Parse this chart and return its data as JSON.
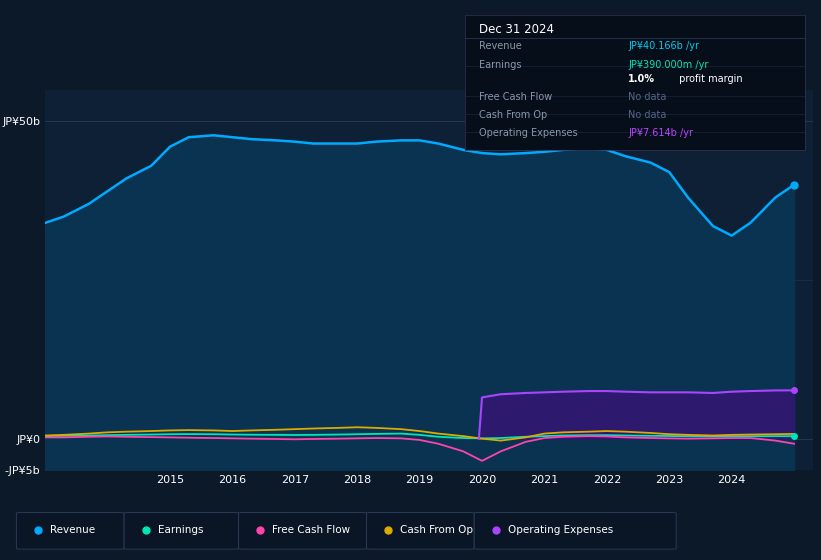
{
  "bg_color": "#0b1929",
  "plot_bg_color": "#0d2035",
  "grid_color": "#1a3a5c",
  "title_box": {
    "date": "Dec 31 2024",
    "rows": [
      {
        "label": "Revenue",
        "value": "JP¥40.166b /yr",
        "value_color": "#00ccee"
      },
      {
        "label": "Earnings",
        "value": "JP¥390.000m /yr",
        "value_color": "#00e5b4"
      },
      {
        "label": "",
        "value": "1.0% profit margin",
        "value_color": "#ffffff"
      },
      {
        "label": "Free Cash Flow",
        "value": "No data",
        "value_color": "#556688"
      },
      {
        "label": "Cash From Op",
        "value": "No data",
        "value_color": "#556688"
      },
      {
        "label": "Operating Expenses",
        "value": "JP¥7.614b /yr",
        "value_color": "#bb44ff"
      }
    ]
  },
  "years_x": [
    2013.0,
    2013.3,
    2013.7,
    2014.0,
    2014.3,
    2014.7,
    2015.0,
    2015.3,
    2015.7,
    2016.0,
    2016.3,
    2016.7,
    2017.0,
    2017.3,
    2017.7,
    2018.0,
    2018.3,
    2018.7,
    2019.0,
    2019.3,
    2019.7,
    2020.0,
    2020.3,
    2020.7,
    2021.0,
    2021.3,
    2021.7,
    2022.0,
    2022.3,
    2022.7,
    2023.0,
    2023.3,
    2023.7,
    2024.0,
    2024.3,
    2024.7,
    2025.0
  ],
  "revenue": [
    34,
    35,
    37,
    39,
    41,
    43,
    46,
    47.5,
    47.8,
    47.5,
    47.2,
    47.0,
    46.8,
    46.5,
    46.5,
    46.5,
    46.8,
    47.0,
    47.0,
    46.5,
    45.5,
    45.0,
    44.8,
    45.0,
    45.2,
    45.5,
    45.8,
    45.5,
    44.5,
    43.5,
    42.0,
    38.0,
    33.5,
    32.0,
    34.0,
    38.0,
    40.0
  ],
  "earnings": [
    0.4,
    0.45,
    0.5,
    0.55,
    0.6,
    0.65,
    0.7,
    0.72,
    0.7,
    0.65,
    0.62,
    0.6,
    0.58,
    0.6,
    0.65,
    0.7,
    0.75,
    0.8,
    0.6,
    0.3,
    0.1,
    0.05,
    0.1,
    0.3,
    0.4,
    0.5,
    0.55,
    0.55,
    0.5,
    0.45,
    0.42,
    0.38,
    0.35,
    0.37,
    0.38,
    0.39,
    0.39
  ],
  "free_cash_flow": [
    0.2,
    0.2,
    0.3,
    0.35,
    0.3,
    0.25,
    0.2,
    0.15,
    0.1,
    0.05,
    0.0,
    -0.05,
    -0.1,
    -0.05,
    0.0,
    0.05,
    0.1,
    0.05,
    -0.2,
    -0.8,
    -2.0,
    -3.5,
    -2.0,
    -0.5,
    0.1,
    0.3,
    0.4,
    0.35,
    0.2,
    0.1,
    0.05,
    0.0,
    0.05,
    0.1,
    0.1,
    -0.3,
    -0.8
  ],
  "cash_from_op": [
    0.5,
    0.6,
    0.8,
    1.0,
    1.1,
    1.2,
    1.3,
    1.35,
    1.3,
    1.2,
    1.3,
    1.4,
    1.5,
    1.6,
    1.7,
    1.8,
    1.7,
    1.5,
    1.2,
    0.8,
    0.4,
    0.0,
    -0.3,
    0.2,
    0.8,
    1.0,
    1.1,
    1.2,
    1.1,
    0.9,
    0.7,
    0.6,
    0.5,
    0.6,
    0.65,
    0.7,
    0.75
  ],
  "op_expenses_x": [
    2019.95,
    2020.0,
    2020.3,
    2020.7,
    2021.0,
    2021.3,
    2021.7,
    2022.0,
    2022.3,
    2022.7,
    2023.0,
    2023.3,
    2023.7,
    2024.0,
    2024.3,
    2024.7,
    2025.0
  ],
  "op_expenses": [
    0.0,
    6.5,
    7.0,
    7.2,
    7.3,
    7.4,
    7.5,
    7.5,
    7.4,
    7.3,
    7.3,
    7.3,
    7.2,
    7.4,
    7.5,
    7.6,
    7.614
  ],
  "revenue_color": "#00aaff",
  "earnings_color": "#00e5b4",
  "fcf_color": "#ff44aa",
  "cfo_color": "#ddaa00",
  "opex_color": "#aa44ff",
  "opex_fill_color": "#2d1a6e",
  "revenue_fill_color": "#0a3352",
  "ylim": [
    -5,
    55
  ],
  "yticks": [
    -5,
    0,
    50
  ],
  "ytick_labels": [
    "-JP¥5b",
    "JP¥0",
    "JP¥50b"
  ],
  "xlim": [
    2013.0,
    2025.3
  ],
  "legend_labels": [
    "Revenue",
    "Earnings",
    "Free Cash Flow",
    "Cash From Op",
    "Operating Expenses"
  ],
  "legend_colors": [
    "#00aaff",
    "#00e5b4",
    "#ff44aa",
    "#ddaa00",
    "#aa44ff"
  ]
}
